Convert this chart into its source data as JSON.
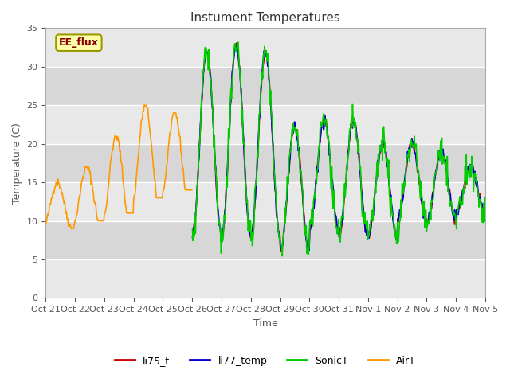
{
  "title": "Instument Temperatures",
  "xlabel": "Time",
  "ylabel": "Temperature (C)",
  "ylim": [
    0,
    35
  ],
  "annotation": "EE_flux",
  "background_color": "#ffffff",
  "plot_bg_color": "#e8e8e8",
  "grid_color": "#ffffff",
  "colors": {
    "li75_t": "#cc0000",
    "li77_temp": "#0000cc",
    "SonicT": "#00cc00",
    "AirT": "#ff9900"
  },
  "xtick_labels": [
    "Oct 21",
    "Oct 22",
    "Oct 23",
    "Oct 24",
    "Oct 25",
    "Oct 26",
    "Oct 27",
    "Oct 28",
    "Oct 29",
    "Oct 30",
    "Oct 31",
    "Nov 1",
    "Nov 2",
    "Nov 3",
    "Nov 4",
    "Nov 5"
  ],
  "legend_labels": [
    "li75_t",
    "li77_temp",
    "SonicT",
    "AirT"
  ]
}
